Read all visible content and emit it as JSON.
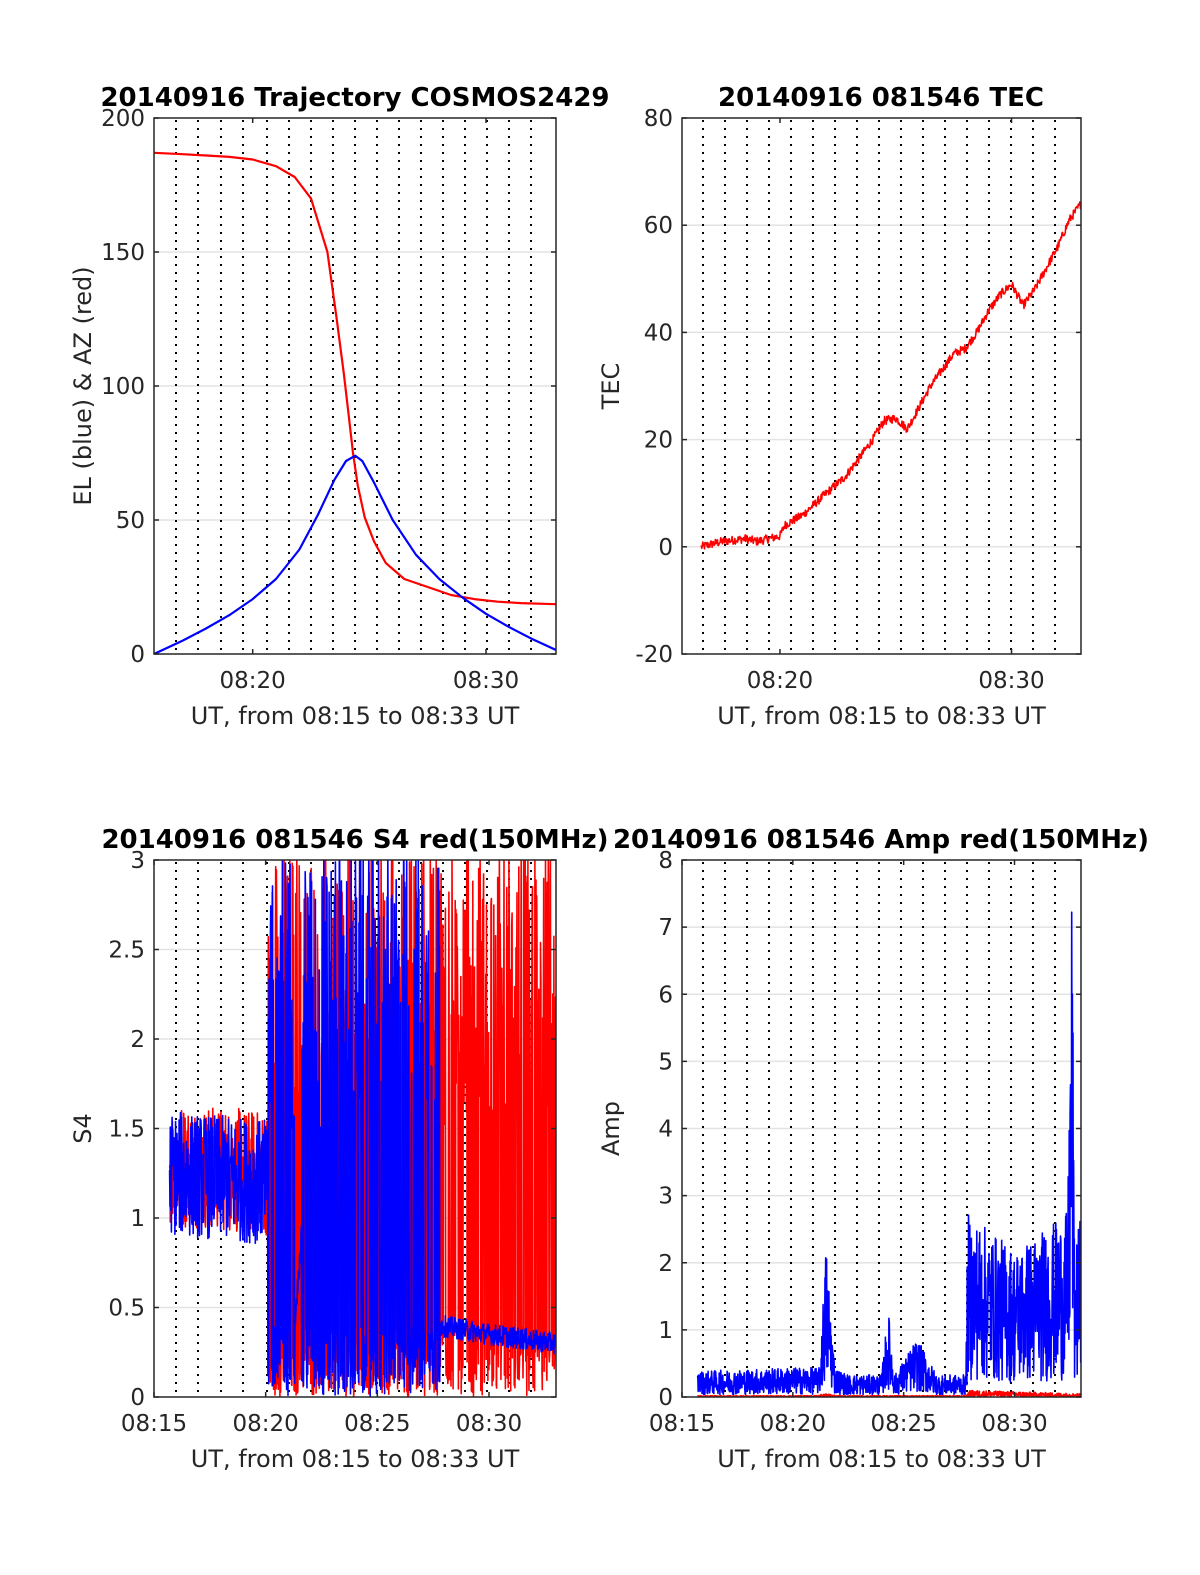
{
  "chart_data": [
    {
      "type": "line",
      "title": "20140916 Trajectory COSMOS2429",
      "xlabel": "UT, from 08:15 to 08:33 UT",
      "ylabel": "EL (blue) & AZ (red)",
      "xlim_minutes": [
        15.77,
        33.0
      ],
      "ylim": [
        0,
        200
      ],
      "yticks": [
        0,
        50,
        100,
        150,
        200
      ],
      "xtick_labels": [
        {
          "t": 20,
          "label": "08:20"
        },
        {
          "t": 30,
          "label": "08:30"
        }
      ],
      "grid": true,
      "series": [
        {
          "color": "#ff0000",
          "x_minutes": [
            15.77,
            17,
            18,
            19,
            20,
            21,
            21.8,
            22.5,
            23.2,
            23.6,
            23.9,
            24.1,
            24.3,
            24.5,
            24.8,
            25.2,
            25.7,
            26.5,
            27.5,
            28.5,
            29.5,
            30.5,
            31.5,
            33.0
          ],
          "values": [
            187,
            186.5,
            186,
            185.5,
            184.5,
            182,
            178,
            170,
            150,
            125,
            105,
            90,
            75,
            63,
            51,
            42,
            34,
            28,
            25,
            22,
            20.5,
            19.5,
            19,
            18.6
          ]
        },
        {
          "color": "#0000ff",
          "x_minutes": [
            15.77,
            17,
            18,
            19,
            20,
            21,
            22,
            22.8,
            23.5,
            24.0,
            24.4,
            24.7,
            25.2,
            26,
            27,
            28,
            29,
            30,
            31,
            32,
            33.0
          ],
          "values": [
            0,
            5,
            9.5,
            14.5,
            20.5,
            28,
            39,
            52,
            65,
            72,
            74,
            72,
            64,
            50,
            37,
            28,
            21,
            15,
            10,
            5.5,
            1.5
          ]
        }
      ]
    },
    {
      "type": "line",
      "title": "20140916 081546 TEC",
      "xlabel": "UT, from 08:15 to 08:33 UT",
      "ylabel": "TEC",
      "xlim_minutes": [
        15.77,
        33.0
      ],
      "ylim": [
        -20,
        80
      ],
      "yticks": [
        -20,
        0,
        20,
        40,
        60,
        80
      ],
      "xtick_labels": [
        {
          "t": 20,
          "label": "08:20"
        },
        {
          "t": 30,
          "label": "08:30"
        }
      ],
      "grid": true,
      "series": [
        {
          "color": "#ff0000",
          "x_minutes": [
            16.6,
            17.5,
            18.5,
            19,
            19.5,
            20.0,
            20.2,
            21,
            22,
            22.8,
            23.5,
            24.0,
            24.5,
            25.0,
            25.5,
            26,
            26.5,
            27,
            27.5,
            28.0,
            28.5,
            29.0,
            29.5,
            30.0,
            30.5,
            31.0,
            31.5,
            32.0,
            32.5,
            33.0
          ],
          "values": [
            0,
            1,
            1.5,
            1,
            1.5,
            2,
            4,
            6,
            10,
            13,
            17,
            20,
            23.5,
            24,
            22,
            26,
            30,
            33,
            36,
            37,
            40,
            44,
            47,
            49,
            45,
            48,
            52,
            56,
            61,
            64
          ]
        }
      ]
    },
    {
      "type": "line",
      "title": "20140916 081546 S4 red(150MHz)",
      "xlabel": "UT, from 08:15 to 08:33 UT",
      "ylabel": "S4",
      "xlim_minutes": [
        15.0,
        33.0
      ],
      "ylim": [
        0,
        3
      ],
      "yticks": [
        0,
        0.5,
        1,
        1.5,
        2,
        2.5,
        3
      ],
      "xtick_labels": [
        {
          "t": 15,
          "label": "08:15"
        },
        {
          "t": 20,
          "label": "08:20"
        },
        {
          "t": 25,
          "label": "08:25"
        },
        {
          "t": 30,
          "label": "08:30"
        }
      ],
      "grid": true,
      "series": [
        {
          "color": "#ff0000",
          "x_minutes": [
            15.7,
            20.1,
            20.15,
            22.0,
            24.0,
            27.8,
            28.0,
            33.0
          ],
          "values": [
            1.3,
            1.25,
            2.2,
            1.5,
            1.6,
            1.4,
            1.6,
            1.5
          ]
        },
        {
          "color": "#0000ff",
          "x_minutes": [
            15.7,
            20.1,
            20.15,
            21.3,
            21.6,
            22.4,
            24.0,
            25.0,
            27.4,
            27.8,
            30.0,
            33.0
          ],
          "values": [
            1.25,
            1.2,
            2.5,
            0.4,
            0.9,
            2.2,
            2.0,
            1.0,
            2.2,
            0.4,
            0.35,
            0.3
          ]
        }
      ]
    },
    {
      "type": "line",
      "title": "20140916 081546 Amp red(150MHz)",
      "xlabel": "UT, from 08:15 to 08:33 UT",
      "ylabel": "Amp",
      "xlim_minutes": [
        15.0,
        33.0
      ],
      "ylim": [
        0,
        8
      ],
      "yticks": [
        0,
        1,
        2,
        3,
        4,
        5,
        6,
        7,
        8
      ],
      "xtick_labels": [
        {
          "t": 15,
          "label": "08:15"
        },
        {
          "t": 20,
          "label": "08:20"
        },
        {
          "t": 25,
          "label": "08:25"
        },
        {
          "t": 30,
          "label": "08:30"
        }
      ],
      "grid": true,
      "series": [
        {
          "color": "#0000ff",
          "x_minutes": [
            15.7,
            20.0,
            21.2,
            21.5,
            21.9,
            22.5,
            23.0,
            24.0,
            24.3,
            24.6,
            25.6,
            26.5,
            27.8,
            27.9,
            30.0,
            32.4,
            32.6,
            32.7,
            33.0
          ],
          "values": [
            0.35,
            0.4,
            0.4,
            2.1,
            0.4,
            0.3,
            0.3,
            0.3,
            1.2,
            0.3,
            0.8,
            0.3,
            0.3,
            2.5,
            2.0,
            2.5,
            7.4,
            2.0,
            2.5
          ]
        },
        {
          "color": "#ff0000",
          "x_minutes": [
            15.7,
            21.0,
            21.5,
            22.0,
            27.8,
            28.0,
            33.0
          ],
          "values": [
            0.02,
            0.02,
            0.05,
            0.02,
            0.02,
            0.1,
            0.05
          ]
        }
      ]
    }
  ]
}
